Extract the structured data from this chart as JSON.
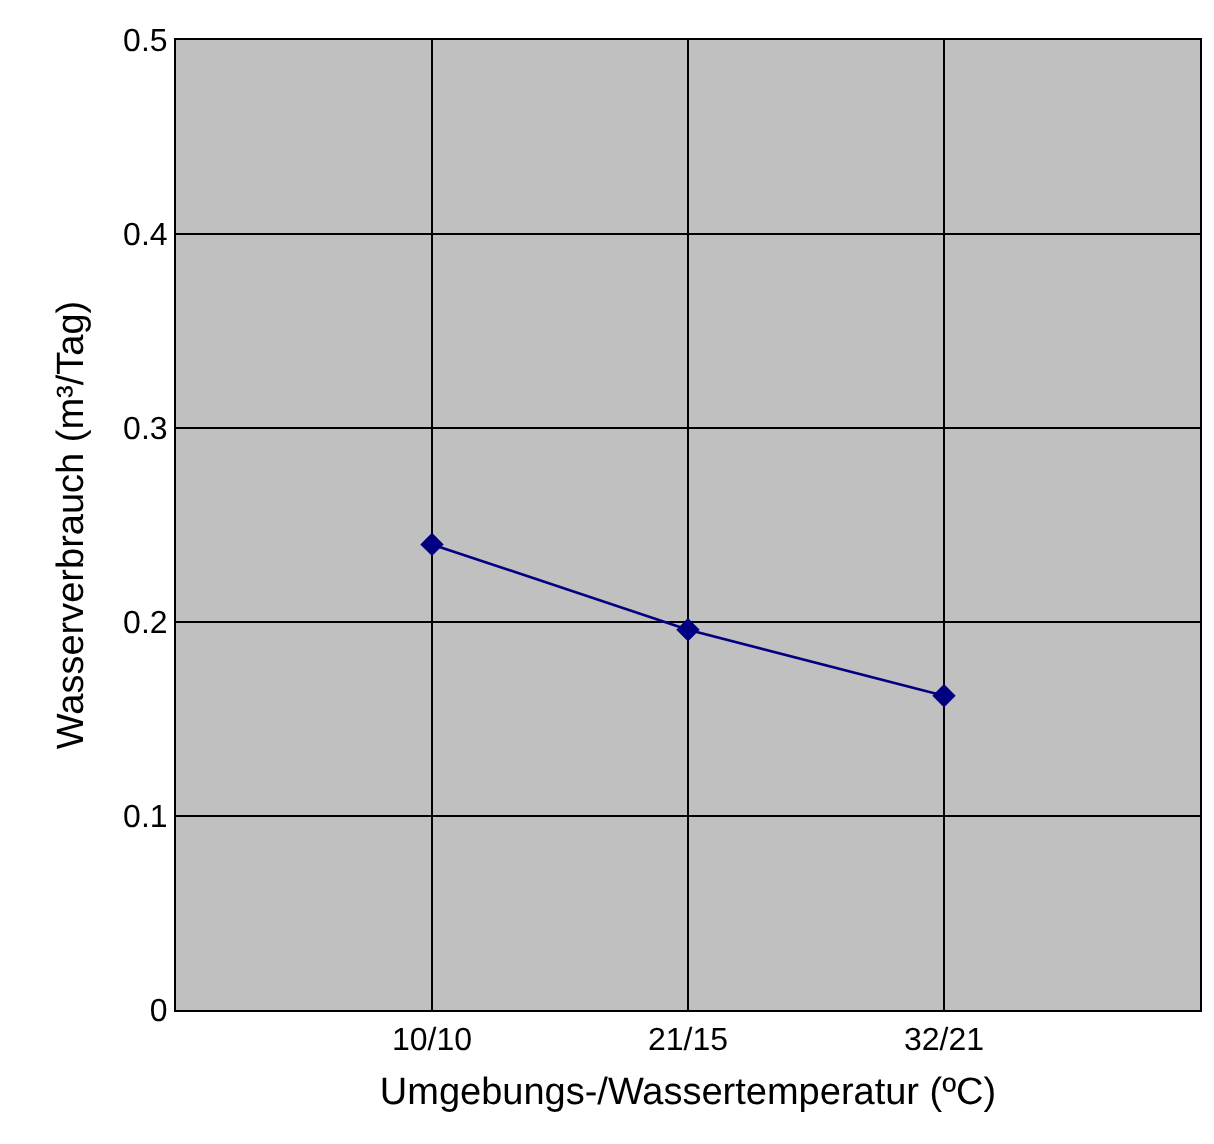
{
  "chart_data": {
    "type": "line",
    "xlabel": "Umgebungs-/Wassertemperatur (ºC)",
    "ylabel": "Wasserverbrauch (m³/Tag)",
    "categories": [
      "10/10",
      "21/15",
      "32/21"
    ],
    "series": [
      {
        "color": "#000080",
        "values": [
          0.24,
          0.196,
          0.162
        ]
      }
    ],
    "ylim": [
      0,
      0.5
    ],
    "yticks": [
      0,
      0.1,
      0.2,
      0.3,
      0.4,
      0.5
    ],
    "grid": true,
    "marker": "diamond",
    "line_style": "solid",
    "legend": false
  }
}
